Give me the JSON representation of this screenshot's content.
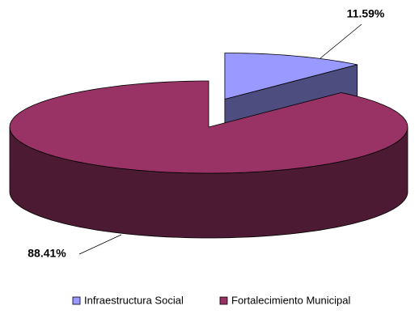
{
  "chart_data": {
    "type": "pie3d",
    "categories": [
      "Infraestructura Social",
      "Fortalecimiento Municipal"
    ],
    "values": [
      11.59,
      88.41
    ],
    "value_labels": [
      "11.59%",
      "88.41%"
    ],
    "colors": [
      "#9999ff",
      "#993366"
    ],
    "legend": "bottom"
  }
}
